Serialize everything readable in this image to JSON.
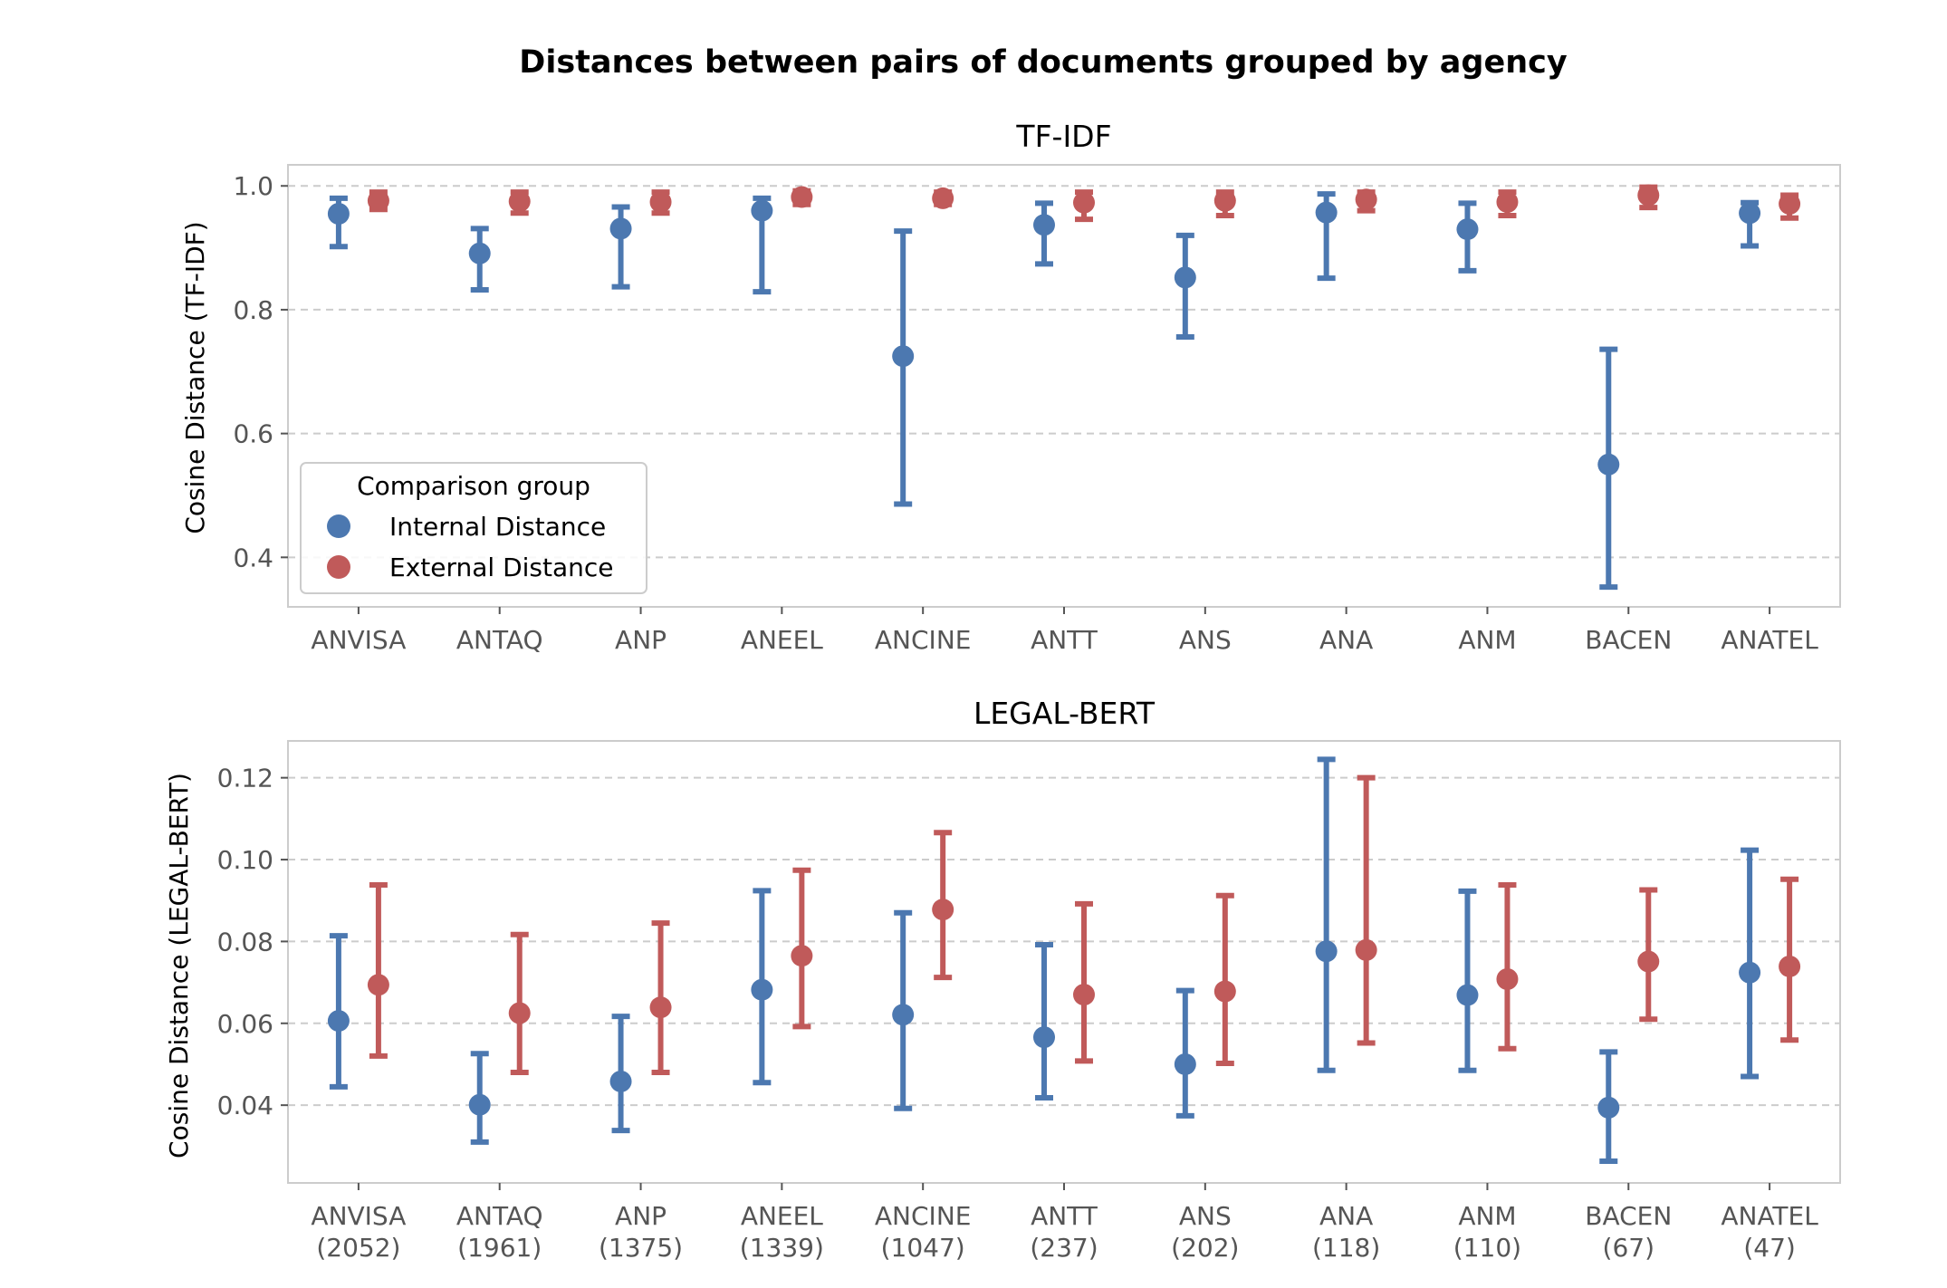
{
  "figure_title": "Distances between pairs of documents grouped by agency",
  "legend": {
    "title": "Comparison group",
    "entries": [
      "Internal Distance",
      "External Distance"
    ],
    "placement": "lower-left (top panel)"
  },
  "colors": {
    "internal": "#4c78b0",
    "external": "#c05a5a"
  },
  "chart_data": [
    {
      "type": "scatter",
      "subtype": "point-with-error-bars",
      "title": "TF-IDF",
      "xlabel": "",
      "ylabel": "Cosine Distance (TF-IDF)",
      "categories": [
        "ANVISA",
        "ANTAQ",
        "ANP",
        "ANEEL",
        "ANCINE",
        "ANTT",
        "ANS",
        "ANA",
        "ANM",
        "BACEN",
        "ANATEL"
      ],
      "category_labels": [
        [
          "ANVISA"
        ],
        [
          "ANTAQ"
        ],
        [
          "ANP"
        ],
        [
          "ANEEL"
        ],
        [
          "ANCINE"
        ],
        [
          "ANTT"
        ],
        [
          "ANS"
        ],
        [
          "ANA"
        ],
        [
          "ANM"
        ],
        [
          "BACEN"
        ],
        [
          "ANATEL"
        ]
      ],
      "ylim": [
        0.32,
        1.034
      ],
      "yticks": [
        0.4,
        0.6,
        0.8,
        1.0
      ],
      "ytick_labels": [
        "0.4",
        "0.6",
        "0.8",
        "1.0"
      ],
      "grid": "horizontal dashed",
      "series": [
        {
          "name": "Internal Distance",
          "values": [
            0.955,
            0.891,
            0.931,
            0.96,
            0.725,
            0.937,
            0.852,
            0.957,
            0.93,
            0.55,
            0.956
          ],
          "lower": [
            0.902,
            0.832,
            0.837,
            0.829,
            0.486,
            0.874,
            0.756,
            0.851,
            0.863,
            0.352,
            0.903
          ],
          "upper": [
            0.98,
            0.931,
            0.966,
            0.98,
            0.927,
            0.972,
            0.92,
            0.987,
            0.972,
            0.736,
            0.973
          ]
        },
        {
          "name": "External Distance",
          "values": [
            0.976,
            0.975,
            0.974,
            0.982,
            0.98,
            0.973,
            0.976,
            0.978,
            0.974,
            0.985,
            0.971
          ],
          "lower": [
            0.962,
            0.956,
            0.956,
            0.97,
            0.97,
            0.946,
            0.952,
            0.96,
            0.952,
            0.965,
            0.948
          ],
          "upper": [
            0.99,
            0.99,
            0.99,
            0.992,
            0.99,
            0.99,
            0.99,
            0.99,
            0.99,
            0.998,
            0.985
          ]
        }
      ]
    },
    {
      "type": "scatter",
      "subtype": "point-with-error-bars",
      "title": "LEGAL-BERT",
      "xlabel": "",
      "ylabel": "Cosine Distance (LEGAL-BERT)",
      "categories": [
        "ANVISA",
        "ANTAQ",
        "ANP",
        "ANEEL",
        "ANCINE",
        "ANTT",
        "ANS",
        "ANA",
        "ANM",
        "BACEN",
        "ANATEL"
      ],
      "category_labels": [
        [
          "ANVISA",
          "(2052)"
        ],
        [
          "ANTAQ",
          "(1961)"
        ],
        [
          "ANP",
          "(1375)"
        ],
        [
          "ANEEL",
          "(1339)"
        ],
        [
          "ANCINE",
          "(1047)"
        ],
        [
          "ANTT",
          "(237)"
        ],
        [
          "ANS",
          "(202)"
        ],
        [
          "ANA",
          "(118)"
        ],
        [
          "ANM",
          "(110)"
        ],
        [
          "BACEN",
          "(67)"
        ],
        [
          "ANATEL",
          "(47)"
        ]
      ],
      "ylim": [
        0.021,
        0.129
      ],
      "yticks": [
        0.04,
        0.06,
        0.08,
        0.1,
        0.12
      ],
      "ytick_labels": [
        "0.04",
        "0.06",
        "0.08",
        "0.10",
        "0.12"
      ],
      "grid": "horizontal dashed",
      "series": [
        {
          "name": "Internal Distance",
          "values": [
            0.0606,
            0.0401,
            0.0458,
            0.0682,
            0.0621,
            0.0566,
            0.05,
            0.0776,
            0.0669,
            0.0394,
            0.0724
          ],
          "lower": [
            0.0445,
            0.031,
            0.0338,
            0.0455,
            0.0392,
            0.0418,
            0.0374,
            0.0485,
            0.0485,
            0.0263,
            0.047
          ],
          "upper": [
            0.0814,
            0.0526,
            0.0617,
            0.0924,
            0.087,
            0.0792,
            0.068,
            0.1245,
            0.0923,
            0.053,
            0.1023
          ]
        },
        {
          "name": "External Distance",
          "values": [
            0.0694,
            0.0625,
            0.0639,
            0.0765,
            0.0878,
            0.067,
            0.0678,
            0.0779,
            0.0708,
            0.0751,
            0.0739
          ],
          "lower": [
            0.052,
            0.048,
            0.048,
            0.0592,
            0.0712,
            0.0508,
            0.0502,
            0.0552,
            0.0538,
            0.061,
            0.0559
          ],
          "upper": [
            0.0938,
            0.0817,
            0.0845,
            0.0974,
            0.1066,
            0.0892,
            0.0912,
            0.12,
            0.0938,
            0.0926,
            0.0952
          ]
        }
      ]
    }
  ]
}
